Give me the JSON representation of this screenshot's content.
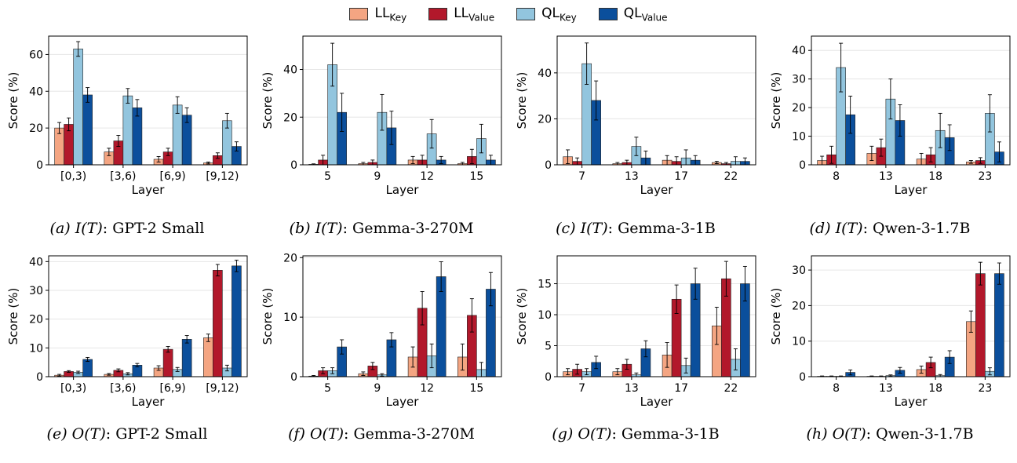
{
  "legend": [
    {
      "base": "LL",
      "sub": "Key",
      "color": "#f4a582"
    },
    {
      "base": "LL",
      "sub": "Value",
      "color": "#b2182b"
    },
    {
      "base": "QL",
      "sub": "Key",
      "color": "#92c5de"
    },
    {
      "base": "QL",
      "sub": "Value",
      "color": "#0b4f9c"
    }
  ],
  "chart_data": [
    {
      "type": "bar",
      "caption": {
        "label": "(a)",
        "math": "I(T)",
        "title": ": GPT-2 Small"
      },
      "xlabel": "Layer",
      "ylabel": "Score (%)",
      "ylim": [
        0,
        70
      ],
      "yticks": [
        0,
        20,
        40,
        60
      ],
      "categories": [
        "[0,3)",
        "[3,6)",
        "[6,9)",
        "[9,12)"
      ],
      "series": [
        {
          "name": "LL_Key",
          "values": [
            20,
            7,
            3,
            1
          ],
          "errors": [
            3,
            2,
            1.5,
            0.5
          ]
        },
        {
          "name": "LL_Value",
          "values": [
            22,
            13,
            7,
            5
          ],
          "errors": [
            3.5,
            3,
            2,
            1.5
          ]
        },
        {
          "name": "QL_Key",
          "values": [
            63,
            37.5,
            32.5,
            24
          ],
          "errors": [
            4,
            4,
            4.5,
            4
          ]
        },
        {
          "name": "QL_Value",
          "values": [
            38,
            31,
            27,
            10
          ],
          "errors": [
            4,
            4.5,
            4,
            2.5
          ]
        }
      ]
    },
    {
      "type": "bar",
      "caption": {
        "label": "(b)",
        "math": "I(T)",
        "title": ": Gemma-3-270M"
      },
      "xlabel": "Layer",
      "ylabel": "Score (%)",
      "ylim": [
        0,
        54
      ],
      "yticks": [
        0,
        20,
        40
      ],
      "categories": [
        "5",
        "9",
        "12",
        "15"
      ],
      "series": [
        {
          "name": "LL_Key",
          "values": [
            0.2,
            0.5,
            2,
            0.5
          ],
          "errors": [
            0.2,
            0.5,
            1.5,
            0.5
          ]
        },
        {
          "name": "LL_Value",
          "values": [
            2,
            1,
            2,
            3.5
          ],
          "errors": [
            2,
            1,
            2,
            3
          ]
        },
        {
          "name": "QL_Key",
          "values": [
            42,
            22,
            13,
            11
          ],
          "errors": [
            9,
            7.5,
            6,
            6
          ]
        },
        {
          "name": "QL_Value",
          "values": [
            22,
            15.5,
            2,
            2
          ],
          "errors": [
            8,
            7,
            1.5,
            2
          ]
        }
      ]
    },
    {
      "type": "bar",
      "caption": {
        "label": "(c)",
        "math": "I(T)",
        "title": ": Gemma-3-1B"
      },
      "xlabel": "Layer",
      "ylabel": "Score (%)",
      "ylim": [
        0,
        56
      ],
      "yticks": [
        0,
        20,
        40
      ],
      "categories": [
        "7",
        "13",
        "17",
        "22"
      ],
      "series": [
        {
          "name": "LL_Key",
          "values": [
            3.5,
            0.5,
            2,
            1
          ],
          "errors": [
            3,
            0.5,
            2,
            0.5
          ]
        },
        {
          "name": "LL_Value",
          "values": [
            1.5,
            1,
            1.5,
            0.5
          ],
          "errors": [
            1.5,
            1,
            2,
            0.5
          ]
        },
        {
          "name": "QL_Key",
          "values": [
            44,
            8,
            3,
            1.5
          ],
          "errors": [
            9,
            4,
            3.5,
            2
          ]
        },
        {
          "name": "QL_Value",
          "values": [
            28,
            3,
            2,
            1.5
          ],
          "errors": [
            8.5,
            3,
            2,
            1.5
          ]
        }
      ]
    },
    {
      "type": "bar",
      "caption": {
        "label": "(d)",
        "math": "I(T)",
        "title": ": Qwen-3-1.7B"
      },
      "xlabel": "Layer",
      "ylabel": "Score (%)",
      "ylim": [
        0,
        45
      ],
      "yticks": [
        0,
        10,
        20,
        30,
        40
      ],
      "categories": [
        "8",
        "13",
        "18",
        "23"
      ],
      "series": [
        {
          "name": "LL_Key",
          "values": [
            1.5,
            4,
            2,
            1
          ],
          "errors": [
            1.5,
            2.5,
            2,
            0.5
          ]
        },
        {
          "name": "LL_Value",
          "values": [
            3.5,
            6,
            3.5,
            1.5
          ],
          "errors": [
            3,
            3,
            2.5,
            1
          ]
        },
        {
          "name": "QL_Key",
          "values": [
            34,
            23,
            12,
            18
          ],
          "errors": [
            8.5,
            7,
            6,
            6.5
          ]
        },
        {
          "name": "QL_Value",
          "values": [
            17.5,
            15.5,
            9.5,
            4.5
          ],
          "errors": [
            6.5,
            5.5,
            4.5,
            3.5
          ]
        }
      ]
    },
    {
      "type": "bar",
      "caption": {
        "label": "(e)",
        "math": "O(T)",
        "title": ": GPT-2 Small"
      },
      "xlabel": "Layer",
      "ylabel": "Score (%)",
      "ylim": [
        0,
        42
      ],
      "yticks": [
        0,
        10,
        20,
        30,
        40
      ],
      "categories": [
        "[0,3)",
        "[3,6)",
        "[6,9)",
        "[9,12)"
      ],
      "series": [
        {
          "name": "LL_Key",
          "values": [
            0.5,
            0.8,
            3,
            13.5
          ],
          "errors": [
            0.3,
            0.3,
            0.8,
            1.3
          ]
        },
        {
          "name": "LL_Value",
          "values": [
            1.8,
            2.2,
            9.5,
            37
          ],
          "errors": [
            0.3,
            0.5,
            1,
            2
          ]
        },
        {
          "name": "QL_Key",
          "values": [
            1.5,
            1,
            2.5,
            3
          ],
          "errors": [
            0.4,
            0.4,
            0.7,
            1
          ]
        },
        {
          "name": "QL_Value",
          "values": [
            6,
            4,
            13,
            38.5
          ],
          "errors": [
            0.7,
            0.6,
            1.3,
            2
          ]
        }
      ]
    },
    {
      "type": "bar",
      "caption": {
        "label": "(f)",
        "math": "O(T)",
        "title": ": Gemma-3-270M"
      },
      "xlabel": "Layer",
      "ylabel": "Score (%)",
      "ylim": [
        0,
        20.3
      ],
      "yticks": [
        0,
        10,
        20
      ],
      "categories": [
        "5",
        "9",
        "12",
        "15"
      ],
      "series": [
        {
          "name": "LL_Key",
          "values": [
            0.1,
            0.5,
            3.3,
            3.3
          ],
          "errors": [
            0.1,
            0.3,
            1.7,
            2.2
          ]
        },
        {
          "name": "LL_Value",
          "values": [
            1,
            1.8,
            11.5,
            10.3
          ],
          "errors": [
            0.5,
            0.6,
            2.8,
            2.8
          ]
        },
        {
          "name": "QL_Key",
          "values": [
            1,
            0.3,
            3.5,
            1.2
          ],
          "errors": [
            0.5,
            0.2,
            2,
            1.2
          ]
        },
        {
          "name": "QL_Value",
          "values": [
            5,
            6.2,
            16.8,
            14.7
          ],
          "errors": [
            1.2,
            1.2,
            2.5,
            2.8
          ]
        }
      ]
    },
    {
      "type": "bar",
      "caption": {
        "label": "(g)",
        "math": "O(T)",
        "title": ": Gemma-3-1B"
      },
      "xlabel": "Layer",
      "ylabel": "Score (%)",
      "ylim": [
        0,
        19.5
      ],
      "yticks": [
        0,
        5,
        10,
        15
      ],
      "categories": [
        "7",
        "13",
        "17",
        "22"
      ],
      "series": [
        {
          "name": "LL_Key",
          "values": [
            0.8,
            0.8,
            3.5,
            8.2
          ],
          "errors": [
            0.5,
            0.5,
            2,
            3
          ]
        },
        {
          "name": "LL_Value",
          "values": [
            1.2,
            2,
            12.5,
            15.8
          ],
          "errors": [
            0.8,
            0.8,
            2.3,
            2.8
          ]
        },
        {
          "name": "QL_Key",
          "values": [
            0.8,
            0.3,
            1.8,
            2.8
          ],
          "errors": [
            0.5,
            0.3,
            1.2,
            1.7
          ]
        },
        {
          "name": "QL_Value",
          "values": [
            2.3,
            4.5,
            15,
            15
          ],
          "errors": [
            1,
            1.3,
            2.5,
            2.8
          ]
        }
      ]
    },
    {
      "type": "bar",
      "caption": {
        "label": "(h)",
        "math": "O(T)",
        "title": ": Qwen-3-1.7B"
      },
      "xlabel": "Layer",
      "ylabel": "Score (%)",
      "ylim": [
        0,
        34
      ],
      "yticks": [
        0,
        10,
        20,
        30
      ],
      "categories": [
        "8",
        "13",
        "18",
        "23"
      ],
      "series": [
        {
          "name": "LL_Key",
          "values": [
            0.1,
            0.1,
            2,
            15.5
          ],
          "errors": [
            0.1,
            0.1,
            1,
            3
          ]
        },
        {
          "name": "LL_Value",
          "values": [
            0.1,
            0.1,
            4,
            29
          ],
          "errors": [
            0.1,
            0.1,
            1.5,
            3.2
          ]
        },
        {
          "name": "QL_Key",
          "values": [
            0.1,
            0.3,
            0.3,
            1.5
          ],
          "errors": [
            0.1,
            0.2,
            0.3,
            1
          ]
        },
        {
          "name": "QL_Value",
          "values": [
            1.2,
            1.8,
            5.5,
            29
          ],
          "errors": [
            0.7,
            0.8,
            1.8,
            3
          ]
        }
      ]
    }
  ]
}
